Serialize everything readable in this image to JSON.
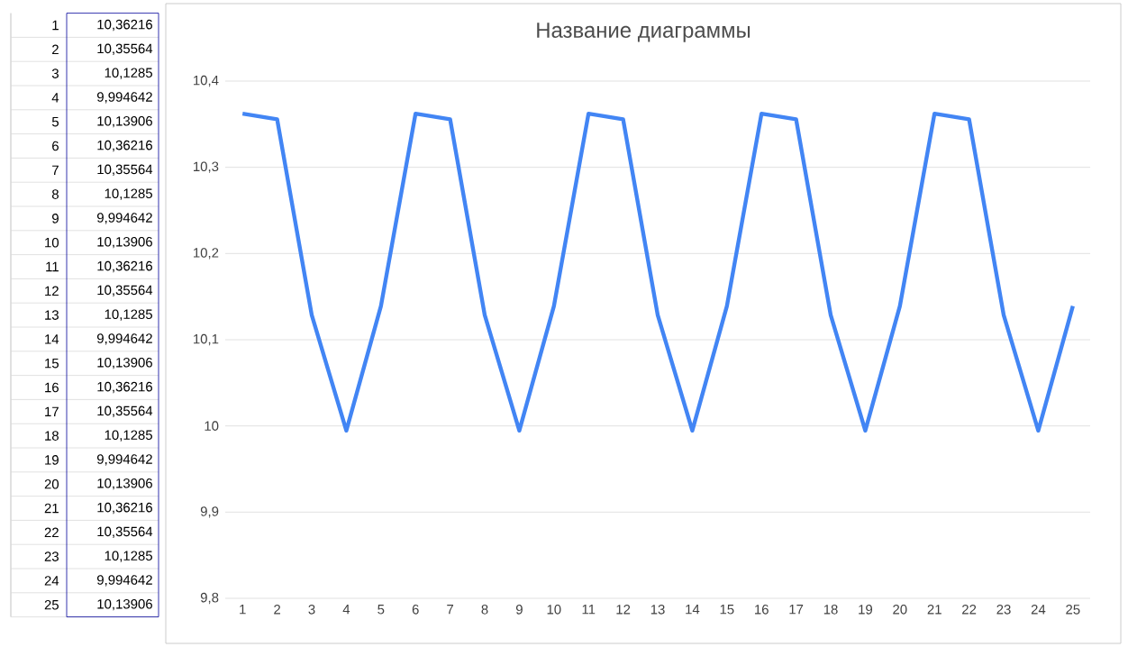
{
  "chart_data": {
    "type": "line",
    "title": "Название диаграммы",
    "categories": [
      "1",
      "2",
      "3",
      "4",
      "5",
      "6",
      "7",
      "8",
      "9",
      "10",
      "11",
      "12",
      "13",
      "14",
      "15",
      "16",
      "17",
      "18",
      "19",
      "20",
      "21",
      "22",
      "23",
      "24",
      "25"
    ],
    "series": [
      {
        "color": "#4285f4",
        "values": [
          10.36216,
          10.35564,
          10.1285,
          9.994642,
          10.13906,
          10.36216,
          10.35564,
          10.1285,
          9.994642,
          10.13906,
          10.36216,
          10.35564,
          10.1285,
          9.994642,
          10.13906,
          10.36216,
          10.35564,
          10.1285,
          9.994642,
          10.13906,
          10.36216,
          10.35564,
          10.1285,
          9.994642,
          10.13906
        ]
      }
    ],
    "ylim": [
      9.8,
      10.4
    ],
    "yticks": [
      {
        "value": 9.8,
        "label": "9,8"
      },
      {
        "value": 9.9,
        "label": "9,9"
      },
      {
        "value": 10,
        "label": "10"
      },
      {
        "value": 10.1,
        "label": "10,1"
      },
      {
        "value": 10.2,
        "label": "10,2"
      },
      {
        "value": 10.3,
        "label": "10,3"
      },
      {
        "value": 10.4,
        "label": "10,4"
      }
    ],
    "annotations": [
      "10,36216",
      "10,35564",
      "10,1285",
      "9,994642",
      "10,13906",
      "10,36216",
      "10,35564",
      "10,1285",
      "9,994642",
      "10,13906",
      "10,36216",
      "10,35564",
      "10,1285",
      "9,994642",
      "10,13906",
      "10,36216",
      "10,35564",
      "10,1285",
      "9,994642",
      "10,13906",
      "10,36216",
      "10,35564",
      "10,1285",
      "9,994642",
      "10,13906"
    ],
    "grid": "y",
    "marker": "none",
    "line_style": "solid"
  }
}
